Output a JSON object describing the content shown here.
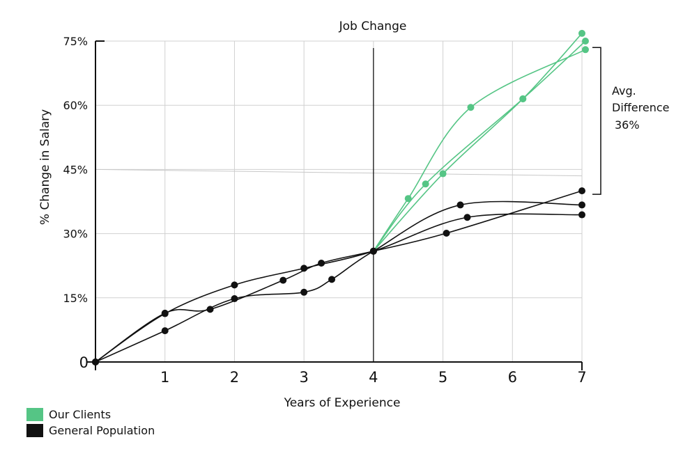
{
  "chart_data": {
    "type": "line",
    "title": "Job Change",
    "xlabel": "Years of Experience",
    "ylabel": "% Change in Salary",
    "xlim": [
      0,
      7
    ],
    "ylim": [
      0,
      75
    ],
    "x_ticks": [
      1,
      2,
      3,
      4,
      5,
      6,
      7
    ],
    "y_ticks": [
      {
        "value": 0,
        "label": "0"
      },
      {
        "value": 15,
        "label": "15%"
      },
      {
        "value": 30,
        "label": "30%"
      },
      {
        "value": 45,
        "label": "45%"
      },
      {
        "value": 60,
        "label": "60%"
      },
      {
        "value": 75,
        "label": "75%"
      }
    ],
    "grid": true,
    "vline_x": 4,
    "trend_line": {
      "from": [
        0,
        45
      ],
      "to": [
        7,
        43.5
      ]
    },
    "annotation": {
      "lines": [
        "Avg.",
        "Difference",
        "36%"
      ],
      "from_value": 40,
      "to_value": 73
    },
    "colors": {
      "clients": "#55c585",
      "general": "#111111"
    },
    "series": [
      {
        "name": "General Population",
        "group": "general",
        "x": [
          0,
          1,
          1.65,
          2.7,
          3.25,
          4,
          5.05,
          7
        ],
        "y": [
          0,
          11.4,
          12.3,
          19.1,
          23.1,
          25.9,
          30.1,
          40
        ]
      },
      {
        "name": "General Population",
        "group": "general",
        "x": [
          0,
          1,
          2,
          3,
          3.4,
          4,
          5.25,
          7
        ],
        "y": [
          0,
          7.3,
          14.8,
          16.3,
          19.3,
          25.9,
          36.7,
          36.7
        ]
      },
      {
        "name": "General Population",
        "group": "general",
        "x": [
          0,
          1,
          2,
          3,
          4,
          5.35,
          7
        ],
        "y": [
          0,
          11.3,
          18,
          21.9,
          25.9,
          33.8,
          34.4
        ]
      },
      {
        "name": "Our Clients",
        "group": "clients",
        "x": [
          4,
          4.5,
          5.4,
          7.05
        ],
        "y": [
          25.9,
          38.2,
          59.5,
          73
        ]
      },
      {
        "name": "Our Clients",
        "group": "clients",
        "x": [
          4,
          4.75,
          6.15,
          7.05
        ],
        "y": [
          25.9,
          41.6,
          61.5,
          75
        ]
      },
      {
        "name": "Our Clients",
        "group": "clients",
        "x": [
          4,
          5,
          6.15,
          7
        ],
        "y": [
          25.9,
          44,
          61.5,
          76.8
        ]
      }
    ],
    "legend": [
      {
        "label": "Our Clients",
        "color": "#55c585"
      },
      {
        "label": "General Population",
        "color": "#111111"
      }
    ]
  }
}
